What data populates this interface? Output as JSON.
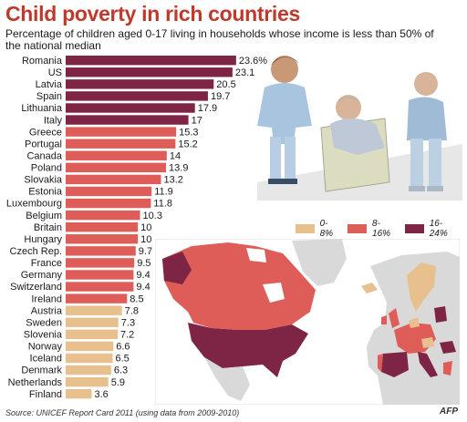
{
  "header": {
    "title": "Child poverty in rich countries",
    "subtitle": "Percentage of children aged 0-17 living in households whose income is less than 50% of the national median"
  },
  "chart_data": {
    "type": "bar",
    "orientation": "horizontal",
    "categories": [
      "Romania",
      "US",
      "Latvia",
      "Spain",
      "Lithuania",
      "Italy",
      "Greece",
      "Portugal",
      "Canada",
      "Poland",
      "Slovakia",
      "Estonia",
      "Luxembourg",
      "Belgium",
      "Britain",
      "Hungary",
      "Czech Rep.",
      "France",
      "Germany",
      "Switzerland",
      "Ireland",
      "Austria",
      "Sweden",
      "Slovenia",
      "Norway",
      "Iceland",
      "Denmark",
      "Netherlands",
      "Finland"
    ],
    "values": [
      23.6,
      23.1,
      20.5,
      19.7,
      17.9,
      17,
      15.3,
      15.2,
      14,
      13.9,
      13.2,
      11.9,
      11.8,
      10.3,
      10,
      10,
      9.7,
      9.5,
      9.4,
      9.4,
      8.5,
      7.8,
      7.3,
      7.2,
      6.6,
      6.5,
      6.3,
      5.9,
      3.6
    ],
    "value_labels": [
      "23.6%",
      "23.1",
      "20.5",
      "19.7",
      "17.9",
      "17",
      "15.3",
      "15.2",
      "14",
      "13.9",
      "13.2",
      "11.9",
      "11.8",
      "10.3",
      "10",
      "10",
      "9.7",
      "9.5",
      "9.4",
      "9.4",
      "8.5",
      "7.8",
      "7.3",
      "7.2",
      "6.6",
      "6.5",
      "6.3",
      "5.9",
      "3.6"
    ],
    "xlim": [
      0,
      24
    ],
    "legend": {
      "placement": "right",
      "entries": [
        {
          "label": "0-8%",
          "color": "#e8c08e",
          "min": 0,
          "max": 8
        },
        {
          "label": "8-16%",
          "color": "#df5d58",
          "min": 8,
          "max": 16
        },
        {
          "label": "16-24%",
          "color": "#7e2545",
          "min": 16,
          "max": 24
        }
      ]
    }
  },
  "colors": {
    "title": "#c0392b",
    "low": "#e8c08e",
    "mid": "#df5d58",
    "high": "#7e2545",
    "map_land": "#d9d9d9",
    "map_sea": "#ffffff"
  },
  "footer": {
    "source": "Source: UNICEF Report Card 2011 (using data from 2009-2010)",
    "credit": "AFP"
  },
  "illustration": "three-children-playing-icon",
  "map": "north-america-europe-map-icon"
}
